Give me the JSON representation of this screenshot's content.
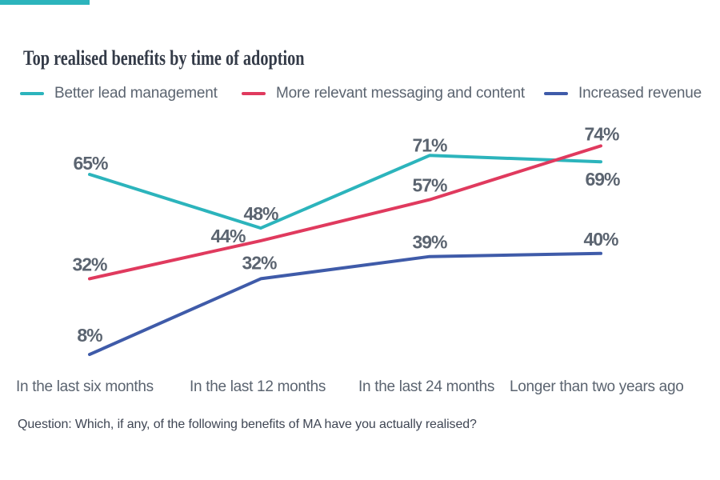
{
  "title": "Top realised benefits by time of adoption",
  "footnote": "Question: Which, if any, of the following benefits of MA have you actually realised?",
  "colors": {
    "accent_bar": "#2cb4bc",
    "title_text": "#343b48",
    "label_text": "#5b6470",
    "footnote_text": "#3f4654"
  },
  "chart_data": {
    "type": "line",
    "title": "Top realised benefits by time of adoption",
    "categories": [
      "In the last six months",
      "In the last 12 months",
      "In the last 24 months",
      "Longer than two years ago"
    ],
    "series": [
      {
        "name": "Better lead management",
        "color": "#2cb4bc",
        "values": [
          65,
          48,
          71,
          69
        ]
      },
      {
        "name": "More relevant messaging and content",
        "color": "#e03a5e",
        "values": [
          32,
          44,
          57,
          74
        ]
      },
      {
        "name": "Increased revenue",
        "color": "#3f5ba9",
        "values": [
          8,
          32,
          39,
          40
        ]
      }
    ],
    "value_suffix": "%",
    "ylim": [
      0,
      100
    ],
    "grid": false,
    "axes_visible": false,
    "legend_position": "top",
    "data_labels": true
  }
}
